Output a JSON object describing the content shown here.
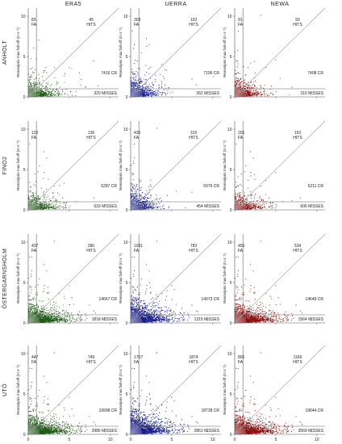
{
  "chart_data": {
    "type": "scatter",
    "columns": [
      "ERA5",
      "UERRA",
      "NEWA"
    ],
    "rows": [
      "ANHOLT",
      "FINO2",
      "ÖSTERGARNSHOLM",
      "UTÖ"
    ],
    "xlabel": "Lidar max fall-off (m s⁻¹)",
    "ylabel": "Reanalysis max fall-off (m s⁻¹)",
    "xlim": [
      0,
      11
    ],
    "ylim": [
      0,
      11
    ],
    "xticks": [
      "0",
      "5",
      "10"
    ],
    "yticks": [
      "0",
      "5",
      "10"
    ],
    "threshold": 1,
    "colors": {
      "ERA5": "#1f5a14",
      "UERRA": "#1a1f8c",
      "NEWA": "#8c1010"
    },
    "fa_label": "FA",
    "hits_label": "HITS",
    "cr_label": "CR",
    "misses_label": "MISSES",
    "panels": [
      [
        {
          "fa": "83",
          "hits": "45",
          "cr": "7416",
          "misses": "320"
        },
        {
          "fa": "303",
          "hits": "103",
          "cr": "7196",
          "misses": "262"
        },
        {
          "fa": "91",
          "hits": "55",
          "cr": "7408",
          "misses": "310"
        }
      ],
      [
        {
          "fa": "125",
          "hits": "136",
          "cr": "6287",
          "misses": "633"
        },
        {
          "fa": "436",
          "hits": "315",
          "cr": "5976",
          "misses": "454"
        },
        {
          "fa": "201",
          "hits": "163",
          "cr": "6211",
          "misses": "606"
        }
      ],
      [
        {
          "fa": "437",
          "hits": "280",
          "cr": "14667",
          "misses": "1818"
        },
        {
          "fa": "1031",
          "hits": "783",
          "cr": "14073",
          "misses": "1315"
        },
        {
          "fa": "455",
          "hits": "534",
          "cr": "14649",
          "misses": "1564"
        }
      ],
      [
        {
          "fa": "447",
          "hits": "749",
          "cr": "19998",
          "misses": "3986"
        },
        {
          "fa": "1707",
          "hits": "1874",
          "cr": "18738",
          "misses": "2861"
        },
        {
          "fa": "801",
          "hits": "1166",
          "cr": "19644",
          "misses": "3569"
        }
      ]
    ]
  }
}
